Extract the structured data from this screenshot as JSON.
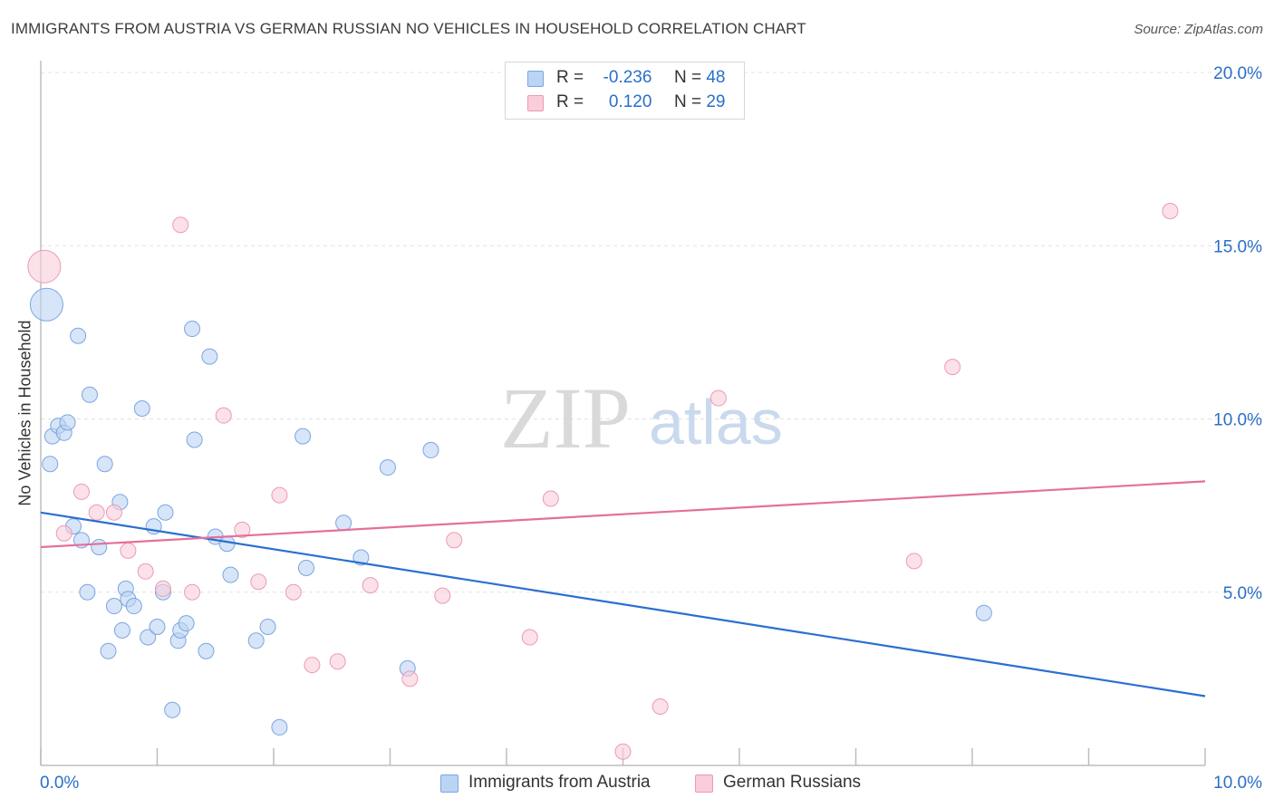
{
  "title": "IMMIGRANTS FROM AUSTRIA VS GERMAN RUSSIAN NO VEHICLES IN HOUSEHOLD CORRELATION CHART",
  "source": "Source: ZipAtlas.com",
  "watermark": {
    "zip": "ZIP",
    "atlas": "atlas"
  },
  "legend": {
    "rows": [
      {
        "r_label": "R =",
        "r_value": "-0.236",
        "n_label": "N =",
        "n_value": "48",
        "color": "#a9c8f0"
      },
      {
        "r_label": "R =",
        "r_value": "0.120",
        "n_label": "N =",
        "n_value": "29",
        "color": "#f7b8cc"
      }
    ]
  },
  "colors": {
    "blue_fill": "#bcd4f4",
    "blue_stroke": "#7aa6e0",
    "blue_line": "#2a6fd0",
    "pink_fill": "#f9cdd9",
    "pink_stroke": "#ee9ab5",
    "pink_line": "#e4709a",
    "grid": "#e2e2e2",
    "axis": "#bdbdbd"
  },
  "chart_data": {
    "type": "scatter",
    "xlabel": "",
    "ylabel": "No Vehicles in Household",
    "xlim": [
      0,
      10
    ],
    "ylim": [
      0,
      20
    ],
    "x_tick_labels": [
      "0.0%",
      "10.0%"
    ],
    "y_ticks": [
      5,
      10,
      15,
      20
    ],
    "y_tick_labels": [
      "5.0%",
      "10.0%",
      "15.0%",
      "20.0%"
    ],
    "grid": true,
    "legend_position": "top-center",
    "series": [
      {
        "name": "Immigrants from Austria",
        "color": "#bcd4f4",
        "trend": {
          "x": [
            0,
            10
          ],
          "y": [
            7.3,
            2.0
          ]
        },
        "points": [
          {
            "x": 0.05,
            "y": 13.3,
            "big": true
          },
          {
            "x": 0.08,
            "y": 8.7
          },
          {
            "x": 0.1,
            "y": 9.5
          },
          {
            "x": 0.15,
            "y": 9.8
          },
          {
            "x": 0.2,
            "y": 9.6
          },
          {
            "x": 0.23,
            "y": 9.9
          },
          {
            "x": 0.28,
            "y": 6.9
          },
          {
            "x": 0.32,
            "y": 12.4
          },
          {
            "x": 0.35,
            "y": 6.5
          },
          {
            "x": 0.4,
            "y": 5.0
          },
          {
            "x": 0.42,
            "y": 10.7
          },
          {
            "x": 0.5,
            "y": 6.3
          },
          {
            "x": 0.55,
            "y": 8.7
          },
          {
            "x": 0.58,
            "y": 3.3
          },
          {
            "x": 0.63,
            "y": 4.6
          },
          {
            "x": 0.68,
            "y": 7.6
          },
          {
            "x": 0.7,
            "y": 3.9
          },
          {
            "x": 0.73,
            "y": 5.1
          },
          {
            "x": 0.75,
            "y": 4.8
          },
          {
            "x": 0.8,
            "y": 4.6
          },
          {
            "x": 0.87,
            "y": 10.3
          },
          {
            "x": 0.92,
            "y": 3.7
          },
          {
            "x": 0.97,
            "y": 6.9
          },
          {
            "x": 1.0,
            "y": 4.0
          },
          {
            "x": 1.05,
            "y": 5.0
          },
          {
            "x": 1.07,
            "y": 7.3
          },
          {
            "x": 1.13,
            "y": 1.6
          },
          {
            "x": 1.18,
            "y": 3.6
          },
          {
            "x": 1.2,
            "y": 3.9
          },
          {
            "x": 1.25,
            "y": 4.1
          },
          {
            "x": 1.3,
            "y": 12.6
          },
          {
            "x": 1.32,
            "y": 9.4
          },
          {
            "x": 1.42,
            "y": 3.3
          },
          {
            "x": 1.45,
            "y": 11.8
          },
          {
            "x": 1.5,
            "y": 6.6
          },
          {
            "x": 1.6,
            "y": 6.4
          },
          {
            "x": 1.63,
            "y": 5.5
          },
          {
            "x": 1.85,
            "y": 3.6
          },
          {
            "x": 1.95,
            "y": 4.0
          },
          {
            "x": 2.05,
            "y": 1.1
          },
          {
            "x": 2.25,
            "y": 9.5
          },
          {
            "x": 2.28,
            "y": 5.7
          },
          {
            "x": 2.6,
            "y": 7.0
          },
          {
            "x": 2.75,
            "y": 6.0
          },
          {
            "x": 2.98,
            "y": 8.6
          },
          {
            "x": 3.15,
            "y": 2.8
          },
          {
            "x": 3.35,
            "y": 9.1
          },
          {
            "x": 8.1,
            "y": 4.4
          }
        ]
      },
      {
        "name": "German Russians",
        "color": "#f9cdd9",
        "trend": {
          "x": [
            0,
            10
          ],
          "y": [
            6.3,
            8.2
          ]
        },
        "points": [
          {
            "x": 0.03,
            "y": 14.4,
            "big": true
          },
          {
            "x": 0.2,
            "y": 6.7
          },
          {
            "x": 0.35,
            "y": 7.9
          },
          {
            "x": 0.48,
            "y": 7.3
          },
          {
            "x": 0.63,
            "y": 7.3
          },
          {
            "x": 0.75,
            "y": 6.2
          },
          {
            "x": 0.9,
            "y": 5.6
          },
          {
            "x": 1.05,
            "y": 5.1
          },
          {
            "x": 1.2,
            "y": 15.6
          },
          {
            "x": 1.3,
            "y": 5.0
          },
          {
            "x": 1.57,
            "y": 10.1
          },
          {
            "x": 1.73,
            "y": 6.8
          },
          {
            "x": 1.87,
            "y": 5.3
          },
          {
            "x": 2.05,
            "y": 7.8
          },
          {
            "x": 2.17,
            "y": 5.0
          },
          {
            "x": 2.33,
            "y": 2.9
          },
          {
            "x": 2.55,
            "y": 3.0
          },
          {
            "x": 2.83,
            "y": 5.2
          },
          {
            "x": 3.17,
            "y": 2.5
          },
          {
            "x": 3.45,
            "y": 4.9
          },
          {
            "x": 3.55,
            "y": 6.5
          },
          {
            "x": 4.2,
            "y": 3.7
          },
          {
            "x": 4.38,
            "y": 7.7
          },
          {
            "x": 5.0,
            "y": 0.4
          },
          {
            "x": 5.32,
            "y": 1.7
          },
          {
            "x": 5.82,
            "y": 10.6
          },
          {
            "x": 7.5,
            "y": 5.9
          },
          {
            "x": 7.83,
            "y": 11.5
          },
          {
            "x": 9.7,
            "y": 16.0
          }
        ]
      }
    ]
  }
}
